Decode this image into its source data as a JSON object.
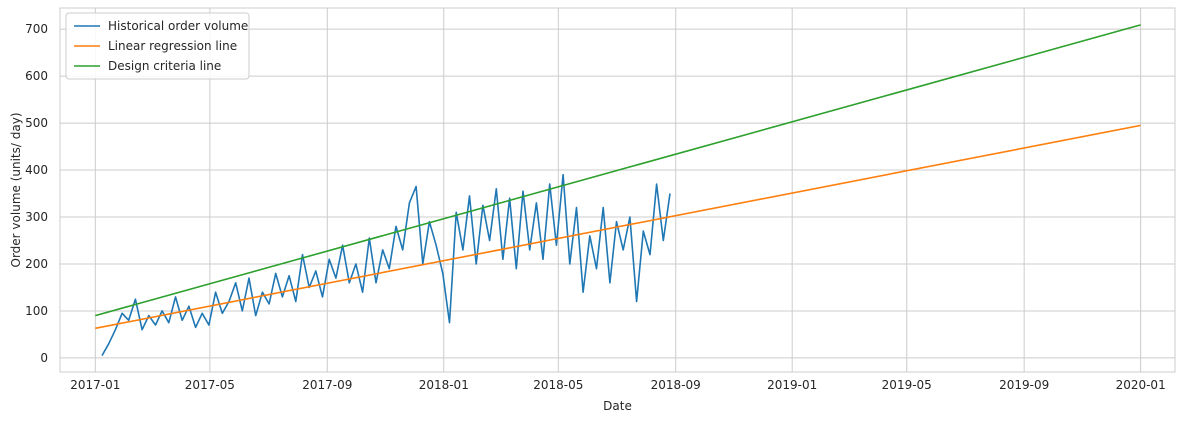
{
  "chart_data": {
    "type": "line",
    "xlabel": "Date",
    "ylabel": "Order volume (units/ day)",
    "x_type": "date",
    "xlim": [
      "2016-11-25",
      "2020-02-06"
    ],
    "ylim": [
      -30,
      745
    ],
    "x_ticks": [
      "2017-01",
      "2017-05",
      "2017-09",
      "2018-01",
      "2018-05",
      "2018-09",
      "2019-01",
      "2019-05",
      "2019-09",
      "2020-01"
    ],
    "y_ticks": [
      0,
      100,
      200,
      300,
      400,
      500,
      600,
      700
    ],
    "grid": true,
    "legend_position": "upper-left",
    "colors": {
      "historical": "#1f77b4",
      "regression": "#ff7f0e",
      "design": "#2ca02c",
      "grid": "#cccccc",
      "axes": "#cccccc"
    },
    "series": [
      {
        "name": "Historical order volume",
        "color": "#1f77b4",
        "x": [
          "2017-01-08",
          "2017-01-15",
          "2017-01-22",
          "2017-01-29",
          "2017-02-05",
          "2017-02-12",
          "2017-02-19",
          "2017-02-26",
          "2017-03-05",
          "2017-03-12",
          "2017-03-19",
          "2017-03-26",
          "2017-04-02",
          "2017-04-09",
          "2017-04-16",
          "2017-04-23",
          "2017-04-30",
          "2017-05-07",
          "2017-05-14",
          "2017-05-21",
          "2017-05-28",
          "2017-06-04",
          "2017-06-11",
          "2017-06-18",
          "2017-06-25",
          "2017-07-02",
          "2017-07-09",
          "2017-07-16",
          "2017-07-23",
          "2017-07-30",
          "2017-08-06",
          "2017-08-13",
          "2017-08-20",
          "2017-08-27",
          "2017-09-03",
          "2017-09-10",
          "2017-09-17",
          "2017-09-24",
          "2017-10-01",
          "2017-10-08",
          "2017-10-15",
          "2017-10-22",
          "2017-10-29",
          "2017-11-05",
          "2017-11-12",
          "2017-11-19",
          "2017-11-26",
          "2017-12-03",
          "2017-12-10",
          "2017-12-17",
          "2017-12-24",
          "2017-12-31",
          "2018-01-07",
          "2018-01-14",
          "2018-01-21",
          "2018-01-28",
          "2018-02-04",
          "2018-02-11",
          "2018-02-18",
          "2018-02-25",
          "2018-03-04",
          "2018-03-11",
          "2018-03-18",
          "2018-03-25",
          "2018-04-01",
          "2018-04-08",
          "2018-04-15",
          "2018-04-22",
          "2018-04-29",
          "2018-05-06",
          "2018-05-13",
          "2018-05-20",
          "2018-05-27",
          "2018-06-03",
          "2018-06-10",
          "2018-06-17",
          "2018-06-24",
          "2018-07-01",
          "2018-07-08",
          "2018-07-15",
          "2018-07-22",
          "2018-07-29",
          "2018-08-05",
          "2018-08-12",
          "2018-08-19",
          "2018-08-26"
        ],
        "values": [
          5,
          30,
          60,
          95,
          80,
          125,
          60,
          90,
          70,
          100,
          75,
          130,
          80,
          110,
          65,
          95,
          70,
          140,
          95,
          120,
          160,
          100,
          170,
          90,
          140,
          115,
          180,
          130,
          175,
          120,
          220,
          150,
          185,
          130,
          210,
          170,
          240,
          160,
          200,
          140,
          255,
          160,
          230,
          190,
          280,
          230,
          330,
          365,
          200,
          290,
          240,
          180,
          75,
          310,
          230,
          345,
          200,
          325,
          250,
          360,
          210,
          340,
          190,
          355,
          230,
          330,
          210,
          370,
          240,
          390,
          200,
          320,
          140,
          260,
          190,
          320,
          160,
          290,
          230,
          300,
          120,
          270,
          220,
          370,
          250,
          350
        ]
      },
      {
        "name": "Linear regression line",
        "color": "#ff7f0e",
        "x": [
          "2017-01-01",
          "2020-01-01"
        ],
        "values": [
          63,
          495
        ]
      },
      {
        "name": "Design criteria line",
        "color": "#2ca02c",
        "x": [
          "2017-01-01",
          "2020-01-01"
        ],
        "values": [
          90,
          709
        ]
      }
    ]
  }
}
